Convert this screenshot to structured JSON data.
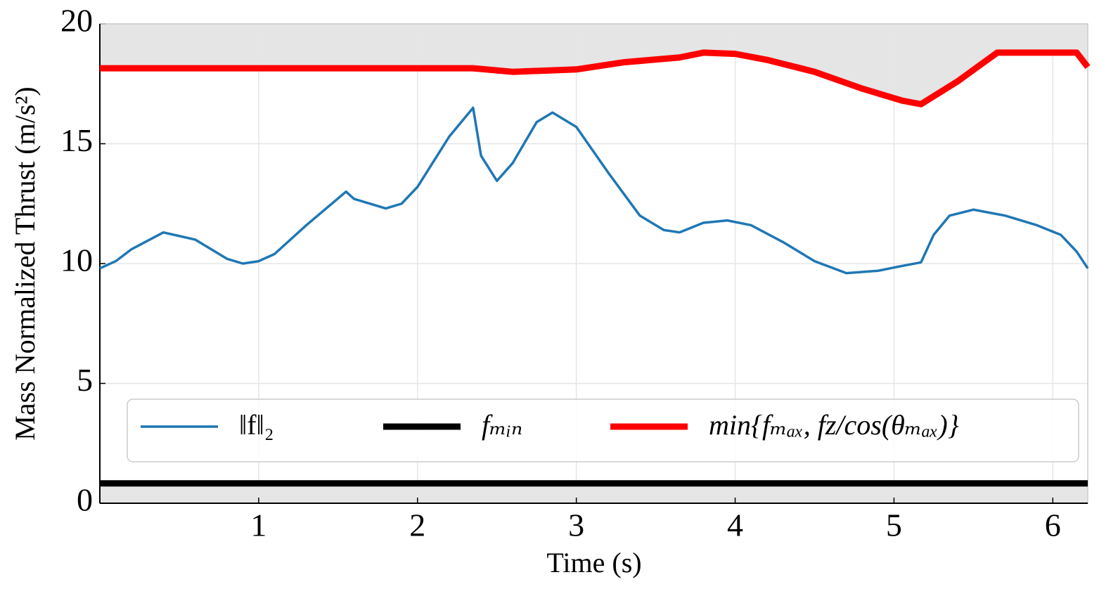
{
  "chart_data": {
    "type": "line",
    "x_label": "Time (s)",
    "y_label": "Mass Normalized Thrust (m/s²)",
    "xlim": [
      0,
      6.22
    ],
    "ylim": [
      0,
      20
    ],
    "xticks": [
      1,
      2,
      3,
      4,
      5,
      6
    ],
    "yticks": [
      0,
      5,
      10,
      15,
      20
    ],
    "grid": true,
    "legend": "lower center",
    "series": [
      {
        "name": "‖f‖₂",
        "color": "#1f77b4",
        "width": 3.5,
        "x": [
          0,
          0.1,
          0.2,
          0.4,
          0.6,
          0.8,
          0.9,
          1.0,
          1.1,
          1.3,
          1.55,
          1.6,
          1.8,
          1.9,
          2.0,
          2.2,
          2.35,
          2.4,
          2.5,
          2.6,
          2.75,
          2.85,
          3.0,
          3.2,
          3.4,
          3.55,
          3.65,
          3.8,
          3.95,
          4.1,
          4.3,
          4.5,
          4.7,
          4.9,
          5.05,
          5.17,
          5.25,
          5.35,
          5.5,
          5.7,
          5.9,
          6.05,
          6.15,
          6.22
        ],
        "values": [
          9.8,
          10.1,
          10.6,
          11.3,
          11.0,
          10.2,
          10.0,
          10.1,
          10.4,
          11.6,
          13.0,
          12.7,
          12.3,
          12.5,
          13.2,
          15.3,
          16.5,
          14.5,
          13.45,
          14.2,
          15.9,
          16.3,
          15.7,
          13.8,
          12.0,
          11.4,
          11.3,
          11.7,
          11.8,
          11.6,
          10.9,
          10.1,
          9.6,
          9.7,
          9.9,
          10.05,
          11.2,
          12.0,
          12.25,
          12.0,
          11.6,
          11.2,
          10.5,
          9.8
        ]
      },
      {
        "name": "fₘᵢₙ",
        "color": "#000000",
        "width": 9,
        "fill": "#e5e5e5",
        "fill_to": "bottom",
        "x": [
          0,
          6.22
        ],
        "values": [
          0.83,
          0.83
        ]
      },
      {
        "name": "min{fₘₐₓ, fz/cos(θₘₐₓ)}",
        "color": "#ff0000",
        "width": 9,
        "fill": "#e5e5e5",
        "fill_to": "top",
        "x": [
          0,
          2.35,
          2.6,
          3.0,
          3.3,
          3.65,
          3.8,
          4.0,
          4.2,
          4.5,
          4.8,
          5.05,
          5.17,
          5.4,
          5.65,
          6.15,
          6.22
        ],
        "values": [
          18.15,
          18.15,
          18.0,
          18.1,
          18.4,
          18.6,
          18.8,
          18.75,
          18.5,
          18.0,
          17.3,
          16.8,
          16.65,
          17.6,
          18.8,
          18.8,
          18.2
        ]
      }
    ]
  }
}
